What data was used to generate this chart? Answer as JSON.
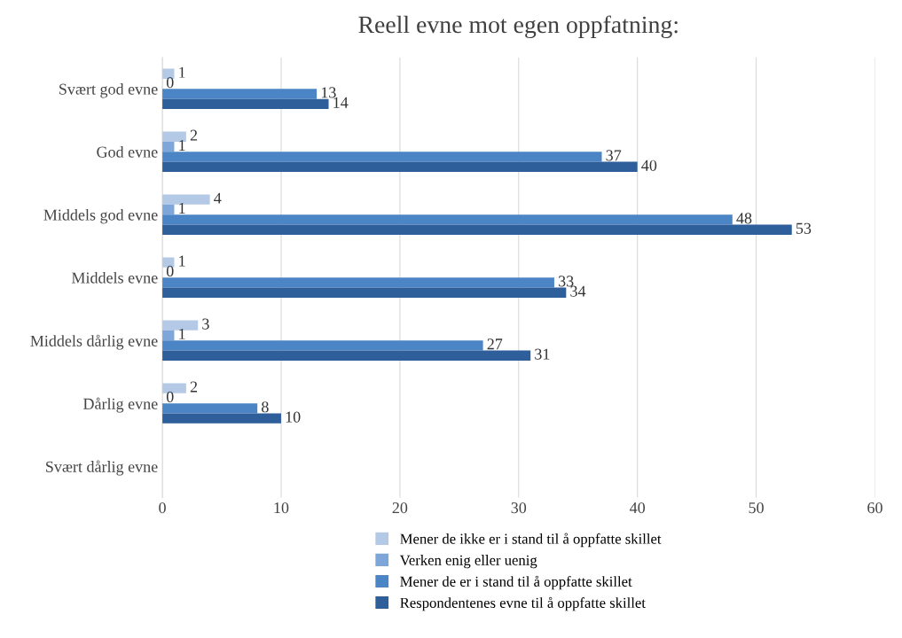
{
  "chart_data": {
    "type": "bar",
    "orientation": "horizontal",
    "title": "Reell evne mot egen oppfatning:",
    "categories": [
      "Svært god evne",
      "God evne",
      "Middels god evne",
      "Middels evne",
      "Middels dårlig evne",
      "Dårlig evne",
      "Svært dårlig evne"
    ],
    "series": [
      {
        "name": "Mener de ikke er i stand til å oppfatte skillet",
        "color": "#b4c9e6",
        "values": [
          1,
          2,
          4,
          1,
          3,
          2,
          null
        ]
      },
      {
        "name": "Verken enig eller uenig",
        "color": "#7ea6d8",
        "values": [
          0,
          1,
          1,
          0,
          1,
          0,
          null
        ]
      },
      {
        "name": "Mener de er i stand til å oppfatte skillet",
        "color": "#4c85c5",
        "values": [
          13,
          37,
          48,
          33,
          27,
          8,
          null
        ]
      },
      {
        "name": "Respondentenes evne til å oppfatte skillet",
        "color": "#2f5f9b",
        "values": [
          14,
          40,
          53,
          34,
          31,
          10,
          null
        ]
      }
    ],
    "xlim": [
      0,
      60
    ],
    "xticks": [
      0,
      10,
      20,
      30,
      40,
      50,
      60
    ],
    "grid": "x",
    "legend": "bottom",
    "data_labels": true
  }
}
